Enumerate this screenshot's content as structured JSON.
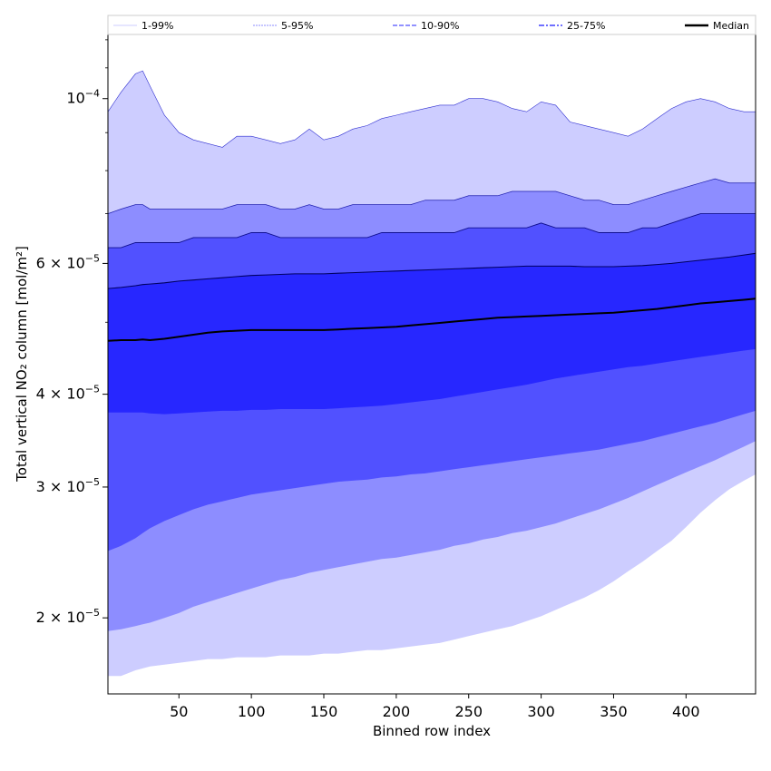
{
  "chart_data": {
    "type": "area",
    "xlabel": "Binned row index",
    "ylabel": "Total vertical NO₂ column [mol/m²]",
    "x_scale": "linear",
    "y_scale": "log",
    "xlim": [
      1,
      448
    ],
    "ylim": [
      1.58e-05,
      0.000122
    ],
    "x_ticks": [
      50,
      100,
      150,
      200,
      250,
      300,
      350,
      400
    ],
    "x_tick_labels": [
      "50",
      "100",
      "150",
      "200",
      "250",
      "300",
      "350",
      "400"
    ],
    "y_ticks": [
      {
        "value": 2e-05,
        "mantissa": "2",
        "exp": "−5"
      },
      {
        "value": 3e-05,
        "mantissa": "3",
        "exp": "−5"
      },
      {
        "value": 4e-05,
        "mantissa": "4",
        "exp": "−5"
      },
      {
        "value": 6e-05,
        "mantissa": "6",
        "exp": "−5"
      },
      {
        "value": 0.0001,
        "mantissa": "",
        "exp": "−4"
      }
    ],
    "legend": {
      "placement": "top",
      "entries": [
        "1-99%",
        "5-95%",
        "10-90%",
        "25-75%",
        "Median"
      ]
    },
    "grid": false,
    "x": [
      1,
      10,
      20,
      25,
      30,
      40,
      50,
      60,
      70,
      80,
      90,
      100,
      110,
      120,
      130,
      140,
      150,
      160,
      170,
      180,
      190,
      200,
      210,
      220,
      230,
      240,
      250,
      260,
      270,
      280,
      290,
      300,
      310,
      320,
      330,
      340,
      350,
      360,
      370,
      380,
      390,
      400,
      410,
      420,
      430,
      440,
      448
    ],
    "bands": [
      {
        "name": "1-99%",
        "color": "#cdcdff",
        "edge": "#3030d0",
        "upper": [
          9.6e-05,
          0.000102,
          0.000108,
          0.000109,
          0.000104,
          9.5e-05,
          9e-05,
          8.8e-05,
          8.7e-05,
          8.6e-05,
          8.9e-05,
          8.9e-05,
          8.8e-05,
          8.7e-05,
          8.8e-05,
          9.1e-05,
          8.8e-05,
          8.9e-05,
          9.1e-05,
          9.2e-05,
          9.4e-05,
          9.5e-05,
          9.6e-05,
          9.7e-05,
          9.8e-05,
          9.8e-05,
          0.0001,
          0.0001,
          9.9e-05,
          9.7e-05,
          9.6e-05,
          9.9e-05,
          9.8e-05,
          9.3e-05,
          9.2e-05,
          9.1e-05,
          9e-05,
          8.9e-05,
          9.1e-05,
          9.4e-05,
          9.7e-05,
          9.9e-05,
          0.0001,
          9.9e-05,
          9.7e-05,
          9.6e-05,
          9.6e-05
        ],
        "lower": [
          1.67e-05,
          1.67e-05,
          1.7e-05,
          1.71e-05,
          1.72e-05,
          1.73e-05,
          1.74e-05,
          1.75e-05,
          1.76e-05,
          1.76e-05,
          1.77e-05,
          1.77e-05,
          1.77e-05,
          1.78e-05,
          1.78e-05,
          1.78e-05,
          1.79e-05,
          1.79e-05,
          1.8e-05,
          1.81e-05,
          1.81e-05,
          1.82e-05,
          1.83e-05,
          1.84e-05,
          1.85e-05,
          1.87e-05,
          1.89e-05,
          1.91e-05,
          1.93e-05,
          1.95e-05,
          1.98e-05,
          2.01e-05,
          2.05e-05,
          2.09e-05,
          2.13e-05,
          2.18e-05,
          2.24e-05,
          2.31e-05,
          2.38e-05,
          2.46e-05,
          2.54e-05,
          2.65e-05,
          2.77e-05,
          2.88e-05,
          2.98e-05,
          3.06e-05,
          3.12e-05
        ]
      },
      {
        "name": "5-95%",
        "color": "#8d8dff",
        "edge": "#2020b0",
        "upper": [
          7e-05,
          7.1e-05,
          7.2e-05,
          7.2e-05,
          7.1e-05,
          7.1e-05,
          7.1e-05,
          7.1e-05,
          7.1e-05,
          7.1e-05,
          7.2e-05,
          7.2e-05,
          7.2e-05,
          7.1e-05,
          7.1e-05,
          7.2e-05,
          7.1e-05,
          7.1e-05,
          7.2e-05,
          7.2e-05,
          7.2e-05,
          7.2e-05,
          7.2e-05,
          7.3e-05,
          7.3e-05,
          7.3e-05,
          7.4e-05,
          7.4e-05,
          7.4e-05,
          7.5e-05,
          7.5e-05,
          7.5e-05,
          7.5e-05,
          7.4e-05,
          7.3e-05,
          7.3e-05,
          7.2e-05,
          7.2e-05,
          7.3e-05,
          7.4e-05,
          7.5e-05,
          7.6e-05,
          7.7e-05,
          7.8e-05,
          7.7e-05,
          7.7e-05,
          7.7e-05
        ],
        "lower": [
          1.92e-05,
          1.93e-05,
          1.95e-05,
          1.96e-05,
          1.97e-05,
          2e-05,
          2.03e-05,
          2.07e-05,
          2.1e-05,
          2.13e-05,
          2.16e-05,
          2.19e-05,
          2.22e-05,
          2.25e-05,
          2.27e-05,
          2.3e-05,
          2.32e-05,
          2.34e-05,
          2.36e-05,
          2.38e-05,
          2.4e-05,
          2.41e-05,
          2.43e-05,
          2.45e-05,
          2.47e-05,
          2.5e-05,
          2.52e-05,
          2.55e-05,
          2.57e-05,
          2.6e-05,
          2.62e-05,
          2.65e-05,
          2.68e-05,
          2.72e-05,
          2.76e-05,
          2.8e-05,
          2.85e-05,
          2.9e-05,
          2.96e-05,
          3.02e-05,
          3.08e-05,
          3.14e-05,
          3.2e-05,
          3.26e-05,
          3.33e-05,
          3.4e-05,
          3.46e-05
        ]
      },
      {
        "name": "10-90%",
        "color": "#5151ff",
        "edge": "#101090",
        "upper": [
          6.3e-05,
          6.3e-05,
          6.4e-05,
          6.4e-05,
          6.4e-05,
          6.4e-05,
          6.4e-05,
          6.5e-05,
          6.5e-05,
          6.5e-05,
          6.5e-05,
          6.6e-05,
          6.6e-05,
          6.5e-05,
          6.5e-05,
          6.5e-05,
          6.5e-05,
          6.5e-05,
          6.5e-05,
          6.5e-05,
          6.6e-05,
          6.6e-05,
          6.6e-05,
          6.6e-05,
          6.6e-05,
          6.6e-05,
          6.7e-05,
          6.7e-05,
          6.7e-05,
          6.7e-05,
          6.7e-05,
          6.8e-05,
          6.7e-05,
          6.7e-05,
          6.7e-05,
          6.6e-05,
          6.6e-05,
          6.6e-05,
          6.7e-05,
          6.7e-05,
          6.8e-05,
          6.9e-05,
          7e-05,
          7e-05,
          7e-05,
          7e-05,
          7e-05
        ],
        "lower": [
          2.46e-05,
          2.5e-05,
          2.56e-05,
          2.6e-05,
          2.64e-05,
          2.7e-05,
          2.75e-05,
          2.8e-05,
          2.84e-05,
          2.87e-05,
          2.9e-05,
          2.93e-05,
          2.95e-05,
          2.97e-05,
          2.99e-05,
          3.01e-05,
          3.03e-05,
          3.05e-05,
          3.06e-05,
          3.07e-05,
          3.09e-05,
          3.1e-05,
          3.12e-05,
          3.13e-05,
          3.15e-05,
          3.17e-05,
          3.19e-05,
          3.21e-05,
          3.23e-05,
          3.25e-05,
          3.27e-05,
          3.29e-05,
          3.31e-05,
          3.33e-05,
          3.35e-05,
          3.37e-05,
          3.4e-05,
          3.43e-05,
          3.46e-05,
          3.5e-05,
          3.54e-05,
          3.58e-05,
          3.62e-05,
          3.66e-05,
          3.71e-05,
          3.76e-05,
          3.8e-05
        ]
      },
      {
        "name": "25-75%",
        "color": "#2727ff",
        "edge": "#000060",
        "upper": [
          5.55e-05,
          5.57e-05,
          5.6e-05,
          5.62e-05,
          5.63e-05,
          5.65e-05,
          5.68e-05,
          5.7e-05,
          5.72e-05,
          5.74e-05,
          5.76e-05,
          5.78e-05,
          5.79e-05,
          5.8e-05,
          5.81e-05,
          5.81e-05,
          5.81e-05,
          5.82e-05,
          5.83e-05,
          5.84e-05,
          5.85e-05,
          5.86e-05,
          5.87e-05,
          5.88e-05,
          5.89e-05,
          5.9e-05,
          5.91e-05,
          5.92e-05,
          5.93e-05,
          5.94e-05,
          5.95e-05,
          5.95e-05,
          5.95e-05,
          5.95e-05,
          5.94e-05,
          5.94e-05,
          5.94e-05,
          5.95e-05,
          5.96e-05,
          5.98e-05,
          6e-05,
          6.03e-05,
          6.06e-05,
          6.09e-05,
          6.12e-05,
          6.16e-05,
          6.19e-05
        ],
        "lower": [
          3.78e-05,
          3.78e-05,
          3.78e-05,
          3.78e-05,
          3.77e-05,
          3.76e-05,
          3.77e-05,
          3.78e-05,
          3.79e-05,
          3.8e-05,
          3.8e-05,
          3.81e-05,
          3.81e-05,
          3.82e-05,
          3.82e-05,
          3.82e-05,
          3.82e-05,
          3.83e-05,
          3.84e-05,
          3.85e-05,
          3.86e-05,
          3.88e-05,
          3.9e-05,
          3.92e-05,
          3.94e-05,
          3.97e-05,
          4e-05,
          4.03e-05,
          4.06e-05,
          4.09e-05,
          4.12e-05,
          4.16e-05,
          4.2e-05,
          4.23e-05,
          4.26e-05,
          4.29e-05,
          4.32e-05,
          4.35e-05,
          4.37e-05,
          4.4e-05,
          4.43e-05,
          4.46e-05,
          4.49e-05,
          4.52e-05,
          4.55e-05,
          4.58e-05,
          4.6e-05
        ]
      }
    ],
    "median": {
      "name": "Median",
      "color": "#000000",
      "values": [
        4.72e-05,
        4.73e-05,
        4.73e-05,
        4.74e-05,
        4.73e-05,
        4.75e-05,
        4.78e-05,
        4.81e-05,
        4.84e-05,
        4.86e-05,
        4.87e-05,
        4.88e-05,
        4.88e-05,
        4.88e-05,
        4.88e-05,
        4.88e-05,
        4.88e-05,
        4.89e-05,
        4.9e-05,
        4.91e-05,
        4.92e-05,
        4.93e-05,
        4.95e-05,
        4.97e-05,
        4.99e-05,
        5.01e-05,
        5.03e-05,
        5.05e-05,
        5.07e-05,
        5.08e-05,
        5.09e-05,
        5.1e-05,
        5.11e-05,
        5.12e-05,
        5.13e-05,
        5.14e-05,
        5.15e-05,
        5.17e-05,
        5.19e-05,
        5.21e-05,
        5.24e-05,
        5.27e-05,
        5.3e-05,
        5.32e-05,
        5.34e-05,
        5.36e-05,
        5.38e-05
      ]
    }
  }
}
